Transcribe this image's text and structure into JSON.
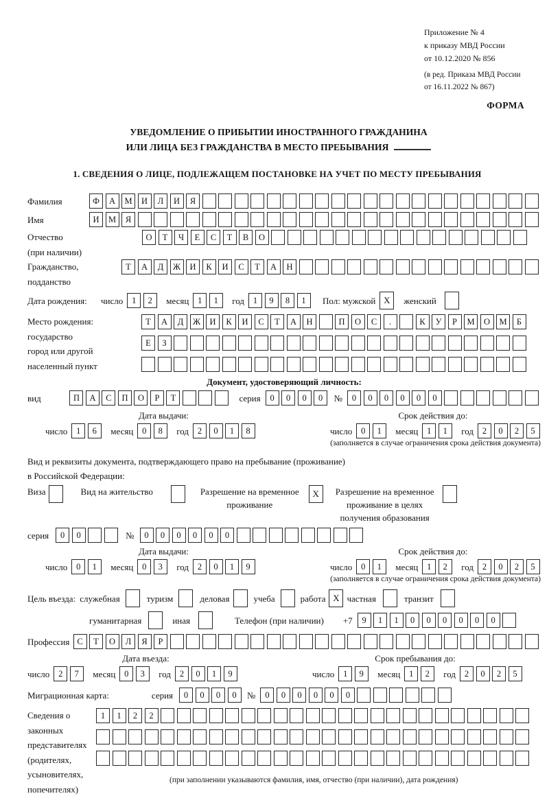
{
  "annex": {
    "line1": "Приложение № 4",
    "line2": "к приказу МВД России",
    "line3": "от 10.12.2020 № 856",
    "line4": "(в ред. Приказа МВД России",
    "line5": "от 16.11.2022 № 867)",
    "form_label": "ФОРМА"
  },
  "title": {
    "line1": "УВЕДОМЛЕНИЕ О ПРИБЫТИИ ИНОСТРАННОГО ГРАЖДАНИНА",
    "line2": "ИЛИ ЛИЦА БЕЗ ГРАЖДАНСТВА В МЕСТО ПРЕБЫВАНИЯ"
  },
  "section1_heading": "1. СВЕДЕНИЯ О ЛИЦЕ, ПОДЛЕЖАЩЕМ ПОСТАНОВКЕ НА УЧЕТ ПО МЕСТУ ПРЕБЫВАНИЯ",
  "labels": {
    "day": "число",
    "month": "месяц",
    "year": "год",
    "series": "серия",
    "number": "№",
    "issue_date": "Дата выдачи:",
    "valid_until": "Срок действия до:",
    "restriction_note": "(заполняется в случае ограничения срока действия документа)"
  },
  "person": {
    "surname_label": "Фамилия",
    "surname": {
      "len": 28,
      "value": "ФАМИЛИЯ"
    },
    "name_label": "Имя",
    "name": {
      "len": 28,
      "value": "ИМЯ"
    },
    "patronymic_label": "Отчество",
    "patronymic_note": "(при наличии)",
    "patronymic": {
      "len": 24,
      "value": "ОТЧЕСТВО"
    },
    "citizenship_label": "Гражданство,",
    "citizenship_label2": "подданство",
    "citizenship": {
      "len": 26,
      "value": "ТАДЖИКИСТАН"
    },
    "birth_date_label": "Дата рождения:",
    "birth_day": {
      "len": 2,
      "value": "12"
    },
    "birth_month": {
      "len": 2,
      "value": "11"
    },
    "birth_year": {
      "len": 4,
      "value": "1981"
    },
    "sex_label": "Пол: мужской",
    "sex_male": {
      "len": 1,
      "value": "X"
    },
    "sex_female_label": "женский",
    "sex_female": {
      "len": 1,
      "value": ""
    },
    "birth_place_label": "Место рождения:",
    "birth_place_l2": "государство",
    "birth_place_l3": "город или другой",
    "birth_place_l4": "населенный пункт",
    "birth_place_row1": {
      "len": 24,
      "value": "ТАДЖИКИСТАН ПОС. КУРМОМБ"
    },
    "birth_place_row2": {
      "len": 24,
      "value": "ЕЗ"
    },
    "birth_place_row3": {
      "len": 24,
      "value": ""
    }
  },
  "identity_doc": {
    "heading": "Документ, удостоверяющий личность:",
    "kind_label": "вид",
    "kind": {
      "len": 10,
      "value": "ПАСПОРТ"
    },
    "series": {
      "len": 4,
      "value": "0000"
    },
    "number": {
      "len": 12,
      "value": "000000"
    },
    "issue_day": {
      "len": 2,
      "value": "16"
    },
    "issue_month": {
      "len": 2,
      "value": "08"
    },
    "issue_year": {
      "len": 4,
      "value": "2018"
    },
    "expiry_day": {
      "len": 2,
      "value": "01"
    },
    "expiry_month": {
      "len": 2,
      "value": "11"
    },
    "expiry_year": {
      "len": 4,
      "value": "2025"
    }
  },
  "residence_doc": {
    "intro_line1": "Вид и реквизиты документа, подтверждающего право на пребывание (проживание)",
    "intro_line2": "в Российской Федерации:",
    "options": [
      {
        "line1": "Виза",
        "box": {
          "len": 1,
          "value": ""
        }
      },
      {
        "line1": "Вид на жительство",
        "box": {
          "len": 1,
          "value": ""
        }
      },
      {
        "line1": "Разрешение на временное",
        "line2": "проживание",
        "box": {
          "len": 1,
          "value": "X"
        }
      },
      {
        "line1": "Разрешение на временное",
        "line2": "проживание в целях",
        "line3": "получения образования",
        "box": {
          "len": 1,
          "value": ""
        }
      }
    ],
    "series": {
      "len": 4,
      "value": "00"
    },
    "number": {
      "len": 14,
      "value": "000000"
    },
    "issue_day": {
      "len": 2,
      "value": "01"
    },
    "issue_month": {
      "len": 2,
      "value": "03"
    },
    "issue_year": {
      "len": 4,
      "value": "2019"
    },
    "expiry_day": {
      "len": 2,
      "value": "01"
    },
    "expiry_month": {
      "len": 2,
      "value": "12"
    },
    "expiry_year": {
      "len": 4,
      "value": "2025"
    }
  },
  "visit": {
    "purpose_label": "Цель въезда:",
    "purposes": [
      {
        "label": "служебная",
        "box": {
          "len": 1,
          "value": ""
        }
      },
      {
        "label": "туризм",
        "box": {
          "len": 1,
          "value": ""
        }
      },
      {
        "label": "деловая",
        "box": {
          "len": 1,
          "value": ""
        }
      },
      {
        "label": "учеба",
        "box": {
          "len": 1,
          "value": ""
        }
      },
      {
        "label": "работа",
        "box": {
          "len": 1,
          "value": "X"
        }
      },
      {
        "label": "частная",
        "box": {
          "len": 1,
          "value": ""
        }
      },
      {
        "label": "транзит",
        "box": {
          "len": 1,
          "value": ""
        }
      }
    ],
    "purposes2": [
      {
        "label": "гуманитарная",
        "box": {
          "len": 1,
          "value": ""
        }
      },
      {
        "label": "иная",
        "box": {
          "len": 1,
          "value": ""
        }
      }
    ],
    "phone_label": "Телефон (при наличии)",
    "phone_prefix": "+7",
    "phone": {
      "len": 10,
      "value": "911000000"
    },
    "profession_label": "Профессия",
    "profession": {
      "len": 29,
      "value": "СТОЛЯР"
    },
    "entry_date_label": "Дата въезда:",
    "entry_day": {
      "len": 2,
      "value": "27"
    },
    "entry_month": {
      "len": 2,
      "value": "03"
    },
    "entry_year": {
      "len": 4,
      "value": "2019"
    },
    "stay_label": "Срок пребывания до:",
    "stay_day": {
      "len": 2,
      "value": "19"
    },
    "stay_month": {
      "len": 2,
      "value": "12"
    },
    "stay_year": {
      "len": 4,
      "value": "2025"
    },
    "migration_label": "Миграционная карта:",
    "mig_series": {
      "len": 4,
      "value": "0000"
    },
    "mig_number": {
      "len": 12,
      "value": "000000"
    },
    "representatives_label_lines": [
      "Сведения о",
      "законных",
      "представителях",
      "(родителях,",
      "усыновителях,",
      "попечителях)"
    ],
    "representatives_row1": {
      "len": 27,
      "value": "1122"
    },
    "representatives_row2": {
      "len": 27,
      "value": ""
    },
    "representatives_row3": {
      "len": 27,
      "value": ""
    },
    "representatives_note": "(при заполнении указываются фамилия, имя, отчество (при наличии), дата рождения)"
  }
}
